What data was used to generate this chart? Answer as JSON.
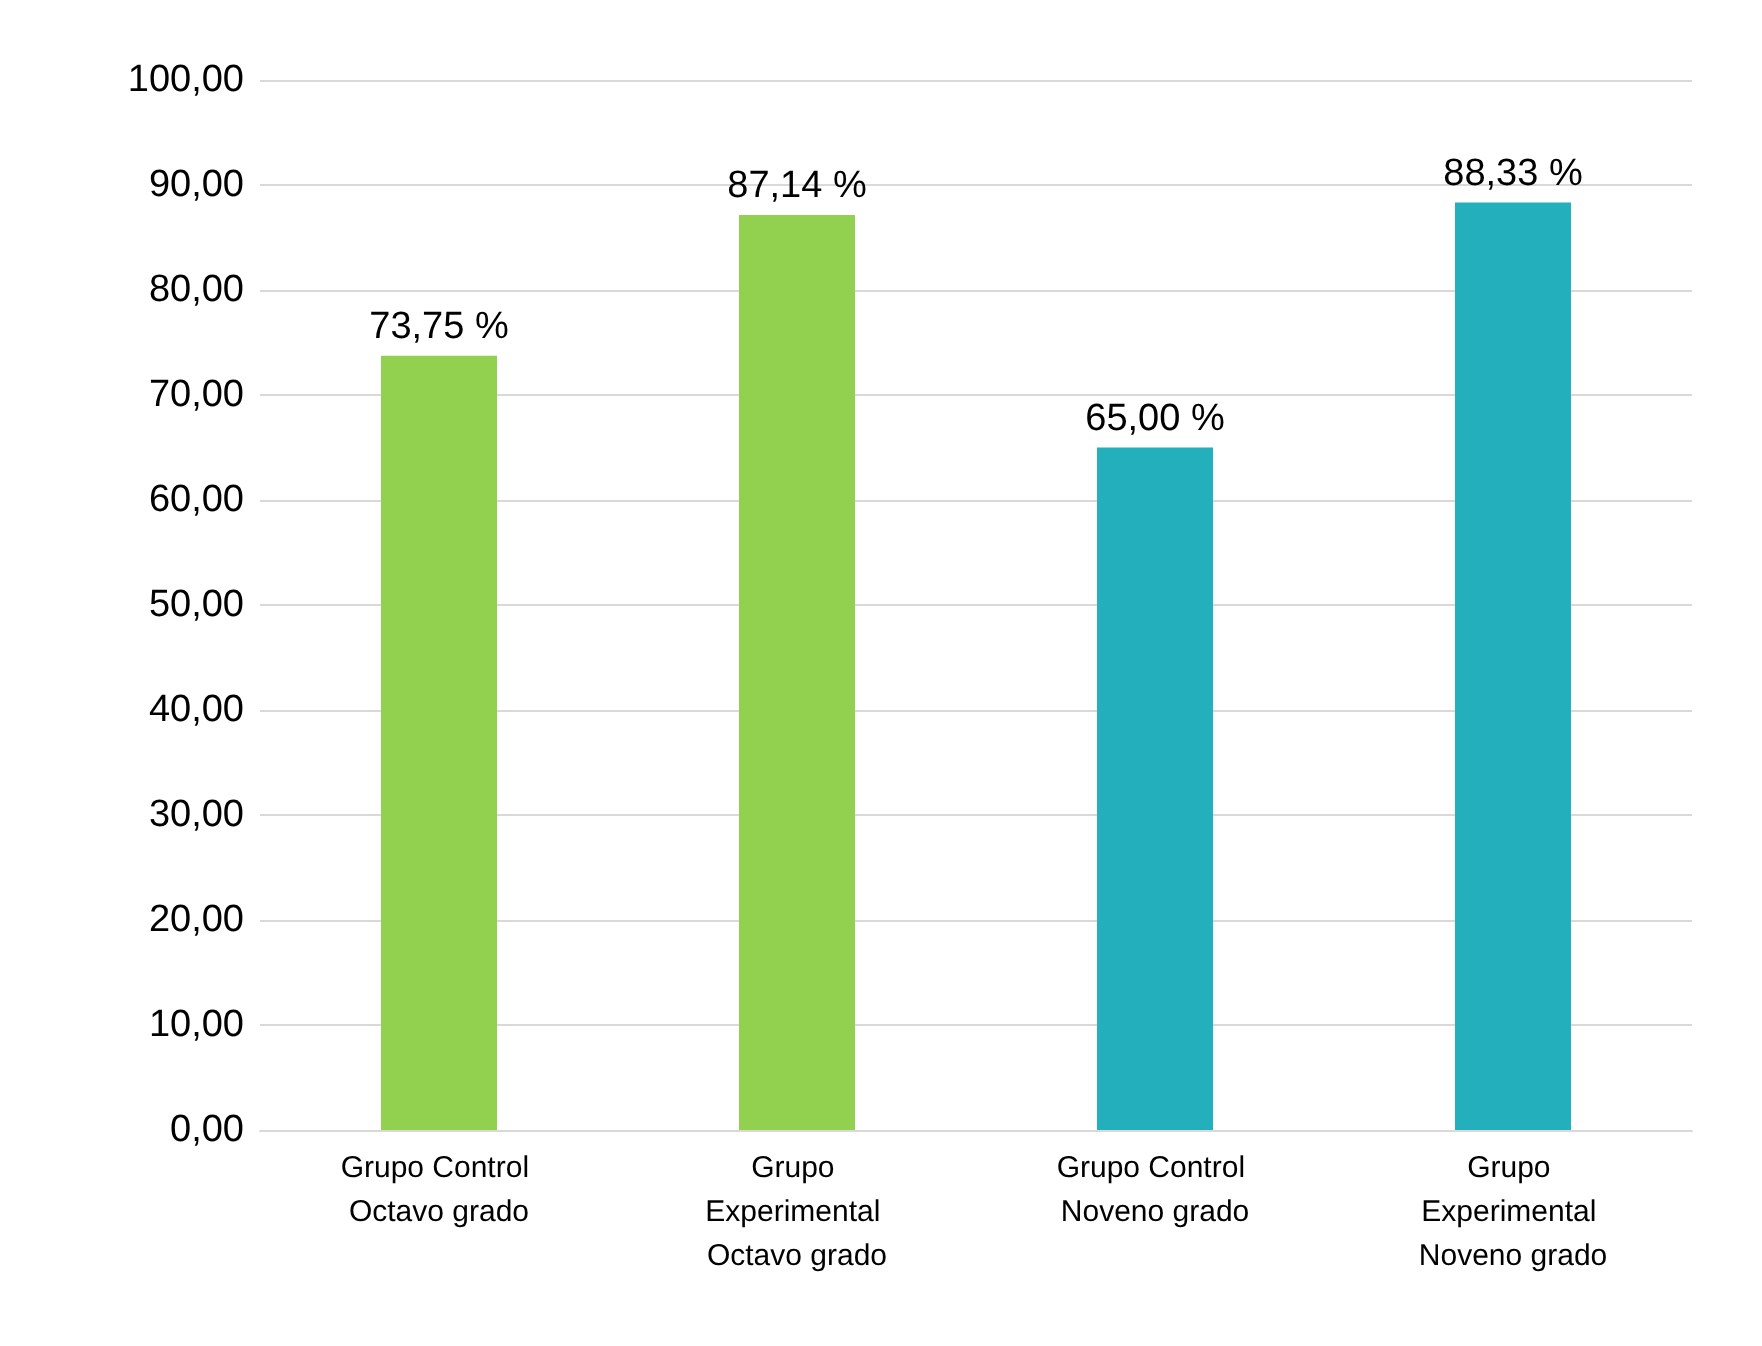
{
  "chart_data": {
    "type": "bar",
    "categories": [
      "Grupo Control Octavo grado",
      "Grupo Experimental Octavo grado",
      "Grupo Control Noveno grado",
      "Grupo Experimental Noveno grado"
    ],
    "values": [
      73.75,
      87.14,
      65.0,
      88.33
    ],
    "colors": [
      "#92d050",
      "#92d050",
      "#23afbb",
      "#23afbb"
    ],
    "value_labels": [
      "73,75 %",
      "87,14 %",
      "65,00 %",
      "88,33 %"
    ],
    "ylim": [
      0,
      100
    ],
    "yticks": [
      {
        "value": 0,
        "label": "0,00"
      },
      {
        "value": 10,
        "label": "10,00"
      },
      {
        "value": 20,
        "label": "20,00"
      },
      {
        "value": 30,
        "label": "30,00"
      },
      {
        "value": 40,
        "label": "40,00"
      },
      {
        "value": 50,
        "label": "50,00"
      },
      {
        "value": 60,
        "label": "60,00"
      },
      {
        "value": 70,
        "label": "70,00"
      },
      {
        "value": 80,
        "label": "80,00"
      },
      {
        "value": 90,
        "label": "90,00"
      },
      {
        "value": 100,
        "label": "100,00"
      }
    ],
    "grid": "y"
  }
}
